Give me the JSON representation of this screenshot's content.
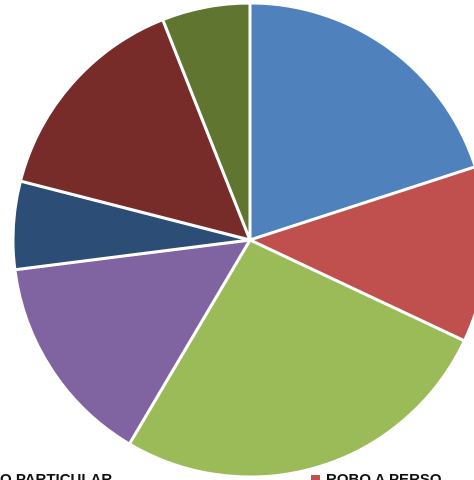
{
  "chart_data": {
    "type": "pie",
    "slices": [
      {
        "value": 20.0,
        "color": "#4F81BD"
      },
      {
        "value": 12.0,
        "color": "#C0504D"
      },
      {
        "value": 26.5,
        "color": "#9BBB59"
      },
      {
        "value": 14.5,
        "color": "#8064A2"
      },
      {
        "value": 6.0,
        "color": "#2C4D75"
      },
      {
        "value": 15.0,
        "color": "#772C2A"
      },
      {
        "value": 6.0,
        "color": "#5F7530"
      }
    ],
    "legend": [
      {
        "label": "O PARTICULAR",
        "color": "#772C2A"
      },
      {
        "label": "ROBO A PERSO",
        "color": "#C0504D"
      }
    ],
    "legend_position": "bottom"
  }
}
